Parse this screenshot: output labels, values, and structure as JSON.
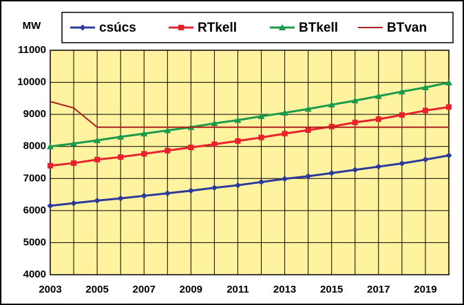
{
  "chart_data": {
    "type": "line",
    "y_label": "MW",
    "x": [
      2003,
      2004,
      2005,
      2006,
      2007,
      2008,
      2009,
      2010,
      2011,
      2012,
      2013,
      2014,
      2015,
      2016,
      2017,
      2018,
      2019,
      2020
    ],
    "series": [
      {
        "name": "csúcs",
        "color": "#2b3a9a",
        "marker": "diamond",
        "values": [
          6150,
          6230,
          6310,
          6380,
          6460,
          6540,
          6620,
          6710,
          6790,
          6890,
          6990,
          7070,
          7170,
          7270,
          7370,
          7470,
          7590,
          7720
        ]
      },
      {
        "name": "RTkell",
        "color": "#e8212b",
        "marker": "square",
        "values": [
          7400,
          7480,
          7590,
          7670,
          7770,
          7870,
          7970,
          8070,
          8170,
          8280,
          8400,
          8510,
          8620,
          8750,
          8850,
          8980,
          9120,
          9230
        ]
      },
      {
        "name": "BTkell",
        "color": "#1a9a4a",
        "marker": "triangle",
        "values": [
          8000,
          8090,
          8190,
          8300,
          8400,
          8500,
          8600,
          8720,
          8820,
          8940,
          9050,
          9170,
          9300,
          9430,
          9570,
          9710,
          9840,
          9990
        ]
      },
      {
        "name": "BTvan",
        "color": "#b02020",
        "marker": "none",
        "values": [
          9400,
          9200,
          8600,
          8600,
          8600,
          8600,
          8600,
          8600,
          8600,
          8600,
          8600,
          8600,
          8600,
          8600,
          8600,
          8600,
          8600,
          8600
        ]
      }
    ],
    "xlim": [
      2003,
      2020
    ],
    "xticks": [
      2003,
      2005,
      2007,
      2009,
      2011,
      2013,
      2015,
      2017,
      2019
    ],
    "ylim": [
      4000,
      11000
    ],
    "yticks": [
      4000,
      5000,
      6000,
      7000,
      8000,
      9000,
      10000,
      11000
    ],
    "grid": true,
    "plot_background": "#fff3a0"
  }
}
